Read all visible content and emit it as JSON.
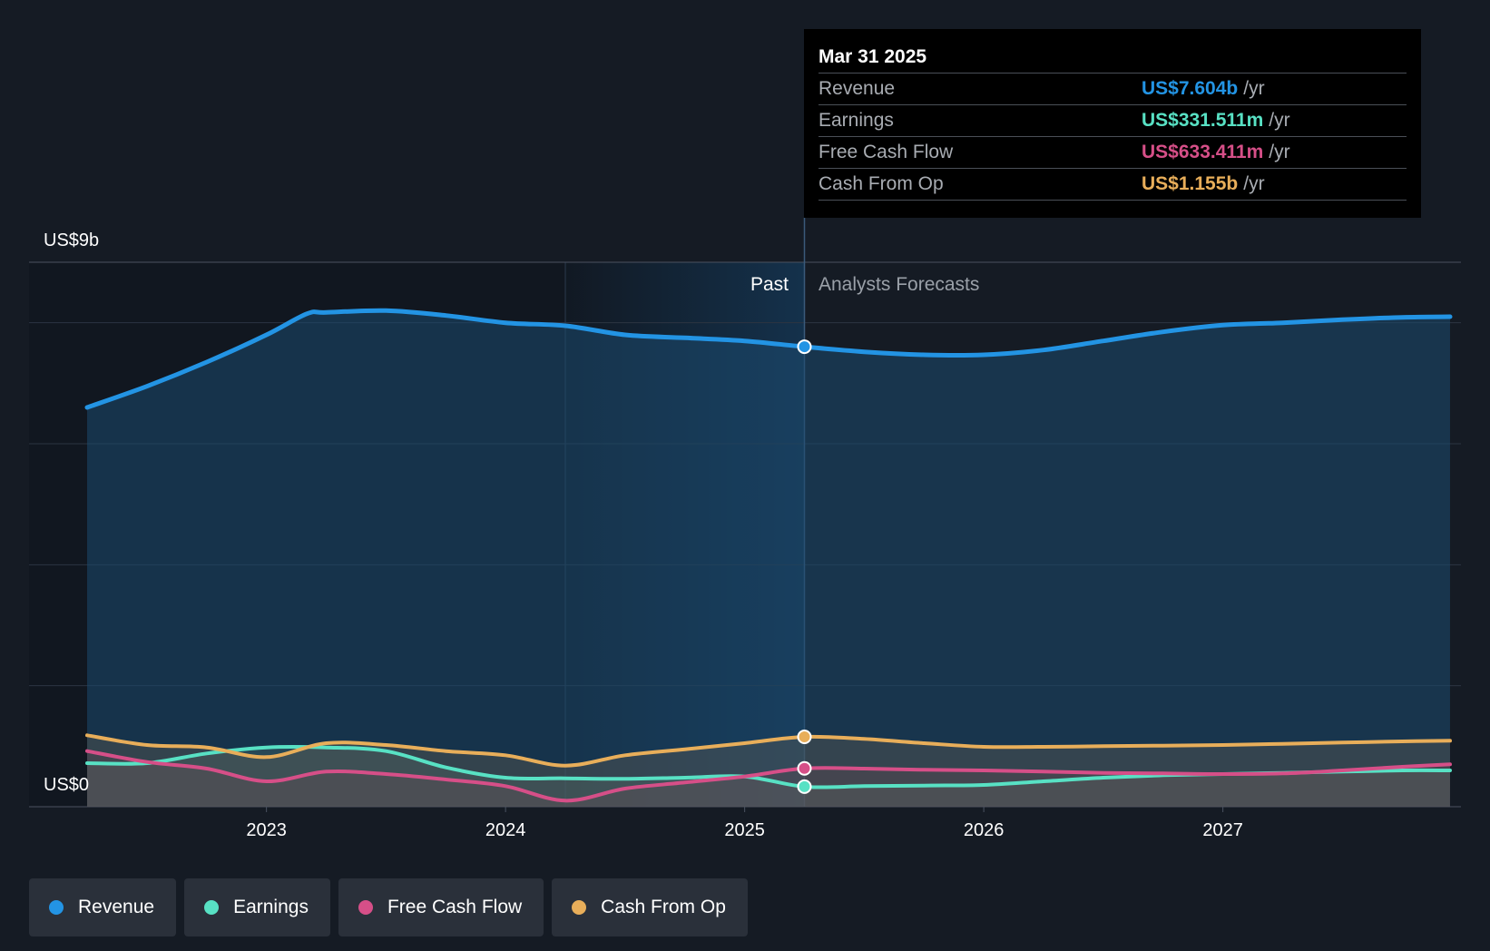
{
  "chart_data": {
    "type": "line",
    "y_top_label": "US$9b",
    "y_bottom_label": "US$0",
    "ylim": [
      0,
      9
    ],
    "xlim": [
      2022.25,
      2027.95
    ],
    "x_ticks": [
      2023,
      2024,
      2025,
      2026,
      2027
    ],
    "x_tick_labels": [
      "2023",
      "2024",
      "2025",
      "2026",
      "2027"
    ],
    "past_label": "Past",
    "forecast_label": "Analysts Forecasts",
    "divider_x": 2025.25,
    "series": [
      {
        "name": "Revenue",
        "color": "#2394e4",
        "unit": "b",
        "points": [
          [
            2022.25,
            6.6
          ],
          [
            2022.5,
            6.95
          ],
          [
            2022.75,
            7.35
          ],
          [
            2023.0,
            7.8
          ],
          [
            2023.17,
            8.15
          ],
          [
            2023.25,
            8.17
          ],
          [
            2023.5,
            8.2
          ],
          [
            2023.75,
            8.12
          ],
          [
            2024.0,
            8.0
          ],
          [
            2024.25,
            7.95
          ],
          [
            2024.5,
            7.8
          ],
          [
            2024.75,
            7.75
          ],
          [
            2025.0,
            7.7
          ],
          [
            2025.25,
            7.604
          ],
          [
            2025.5,
            7.52
          ],
          [
            2025.75,
            7.47
          ],
          [
            2026.0,
            7.47
          ],
          [
            2026.25,
            7.55
          ],
          [
            2026.5,
            7.7
          ],
          [
            2026.75,
            7.85
          ],
          [
            2027.0,
            7.96
          ],
          [
            2027.25,
            8.0
          ],
          [
            2027.5,
            8.05
          ],
          [
            2027.75,
            8.09
          ],
          [
            2027.95,
            8.1
          ]
        ]
      },
      {
        "name": "Earnings",
        "color": "#58e1c4",
        "unit": "m",
        "points": [
          [
            2022.25,
            0.72
          ],
          [
            2022.5,
            0.72
          ],
          [
            2022.75,
            0.88
          ],
          [
            2023.0,
            0.98
          ],
          [
            2023.25,
            0.98
          ],
          [
            2023.5,
            0.92
          ],
          [
            2023.75,
            0.65
          ],
          [
            2024.0,
            0.48
          ],
          [
            2024.25,
            0.47
          ],
          [
            2024.5,
            0.46
          ],
          [
            2024.75,
            0.48
          ],
          [
            2025.0,
            0.5
          ],
          [
            2025.25,
            0.331511
          ],
          [
            2025.5,
            0.34
          ],
          [
            2025.75,
            0.35
          ],
          [
            2026.0,
            0.36
          ],
          [
            2026.25,
            0.42
          ],
          [
            2026.5,
            0.48
          ],
          [
            2026.75,
            0.52
          ],
          [
            2027.0,
            0.54
          ],
          [
            2027.25,
            0.56
          ],
          [
            2027.5,
            0.58
          ],
          [
            2027.75,
            0.6
          ],
          [
            2027.95,
            0.6
          ]
        ]
      },
      {
        "name": "Free Cash Flow",
        "color": "#d64f88",
        "unit": "m",
        "points": [
          [
            2022.25,
            0.92
          ],
          [
            2022.5,
            0.74
          ],
          [
            2022.75,
            0.63
          ],
          [
            2023.0,
            0.42
          ],
          [
            2023.25,
            0.58
          ],
          [
            2023.5,
            0.54
          ],
          [
            2023.75,
            0.45
          ],
          [
            2024.0,
            0.34
          ],
          [
            2024.25,
            0.1
          ],
          [
            2024.5,
            0.3
          ],
          [
            2024.75,
            0.4
          ],
          [
            2025.0,
            0.5
          ],
          [
            2025.25,
            0.633411
          ],
          [
            2025.5,
            0.63
          ],
          [
            2025.75,
            0.61
          ],
          [
            2026.0,
            0.6
          ],
          [
            2026.25,
            0.58
          ],
          [
            2026.5,
            0.56
          ],
          [
            2026.75,
            0.55
          ],
          [
            2027.0,
            0.54
          ],
          [
            2027.25,
            0.55
          ],
          [
            2027.5,
            0.6
          ],
          [
            2027.75,
            0.66
          ],
          [
            2027.95,
            0.7
          ]
        ]
      },
      {
        "name": "Cash From Op",
        "color": "#e8ae5a",
        "unit": "b",
        "points": [
          [
            2022.25,
            1.18
          ],
          [
            2022.5,
            1.02
          ],
          [
            2022.75,
            0.98
          ],
          [
            2023.0,
            0.82
          ],
          [
            2023.25,
            1.05
          ],
          [
            2023.5,
            1.02
          ],
          [
            2023.75,
            0.92
          ],
          [
            2024.0,
            0.85
          ],
          [
            2024.25,
            0.68
          ],
          [
            2024.5,
            0.85
          ],
          [
            2024.75,
            0.95
          ],
          [
            2025.0,
            1.05
          ],
          [
            2025.25,
            1.155
          ],
          [
            2025.5,
            1.12
          ],
          [
            2025.75,
            1.05
          ],
          [
            2026.0,
            0.99
          ],
          [
            2026.25,
            0.99
          ],
          [
            2026.5,
            1.0
          ],
          [
            2026.75,
            1.01
          ],
          [
            2027.0,
            1.02
          ],
          [
            2027.25,
            1.04
          ],
          [
            2027.5,
            1.06
          ],
          [
            2027.75,
            1.08
          ],
          [
            2027.95,
            1.09
          ]
        ]
      }
    ]
  },
  "tooltip": {
    "date": "Mar 31 2025",
    "rows": [
      {
        "name": "Revenue",
        "value": "US$7.604b",
        "unit": "/yr",
        "color": "#2394e4"
      },
      {
        "name": "Earnings",
        "value": "US$331.511m",
        "unit": "/yr",
        "color": "#58e1c4"
      },
      {
        "name": "Free Cash Flow",
        "value": "US$633.411m",
        "unit": "/yr",
        "color": "#d64f88"
      },
      {
        "name": "Cash From Op",
        "value": "US$1.155b",
        "unit": "/yr",
        "color": "#e8ae5a"
      }
    ]
  },
  "legend": [
    {
      "label": "Revenue",
      "color": "#2394e4"
    },
    {
      "label": "Earnings",
      "color": "#58e1c4"
    },
    {
      "label": "Free Cash Flow",
      "color": "#d64f88"
    },
    {
      "label": "Cash From Op",
      "color": "#e8ae5a"
    }
  ]
}
